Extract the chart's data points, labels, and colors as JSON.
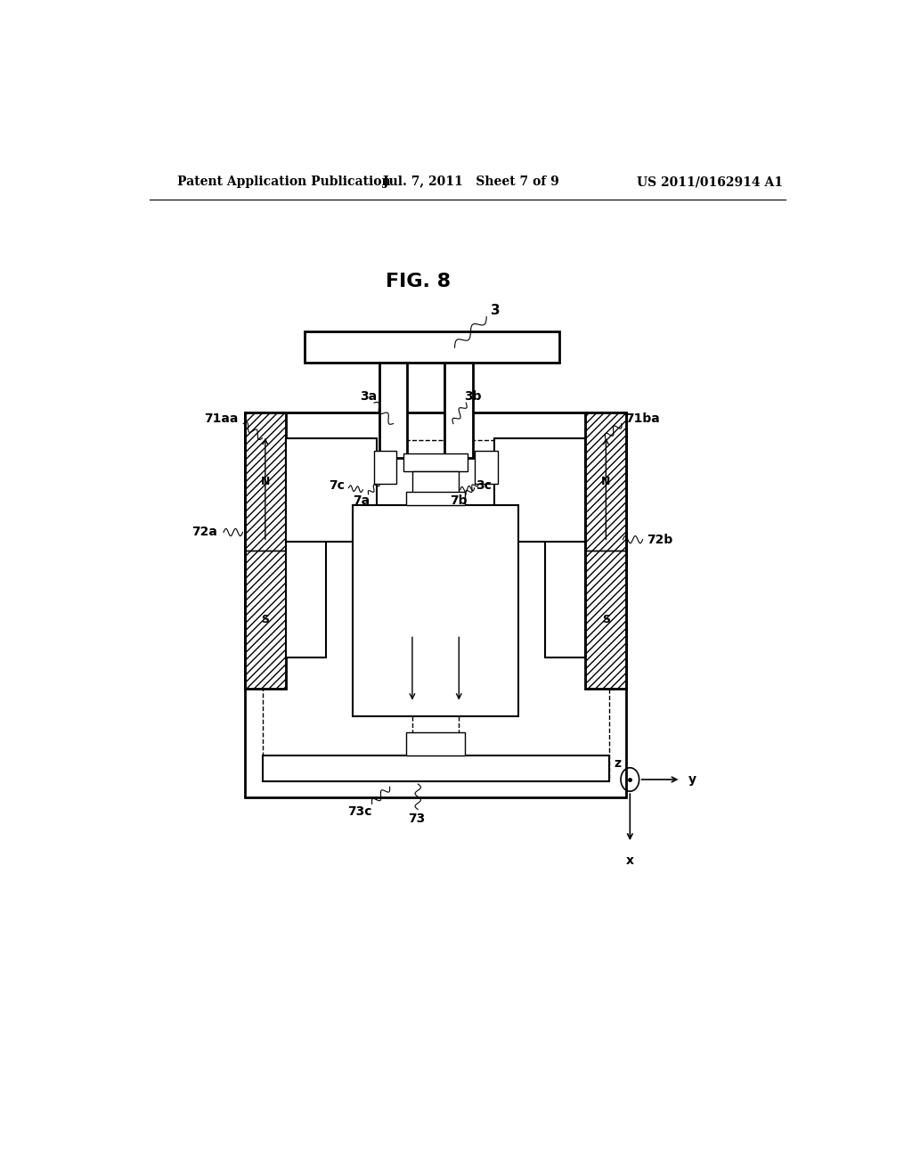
{
  "bg_color": "#ffffff",
  "header_left": "Patent Application Publication",
  "header_mid": "Jul. 7, 2011   Sheet 7 of 9",
  "header_right": "US 2011/0162914 A1",
  "fig_label": "FIG. 8"
}
